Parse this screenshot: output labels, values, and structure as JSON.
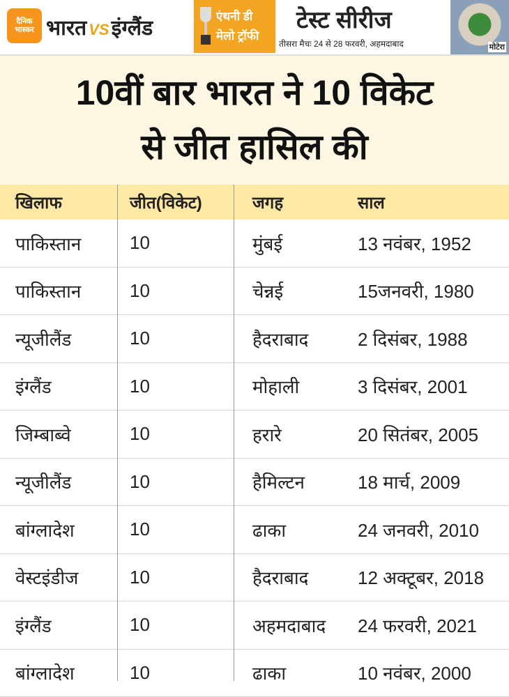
{
  "header": {
    "logo": "दैनिक भास्कर",
    "match": "भारत",
    "vs": "VS",
    "opponent": "इंग्लैंड",
    "trophy_line1": "एंथनी डी",
    "trophy_line2": "मेलो ट्रॉफी",
    "series": "टेस्ट सीरीज",
    "schedule": "तीसरा मैचः 24 से 28 फरवरी, अहमदाबाद",
    "stadium": "मोटेरा"
  },
  "title": {
    "line1": "10वीं बार भारत ने 10 विकेट",
    "line2": "से जीत हासिल की"
  },
  "table": {
    "columns": [
      "खिलाफ",
      "जीत(विकेट)",
      "जगह",
      "साल"
    ],
    "rows": [
      [
        "पाकिस्तान",
        "10",
        "मुंबई",
        "13 नवंबर, 1952"
      ],
      [
        "पाकिस्तान",
        "10",
        "चेन्नई",
        "15जनवरी, 1980"
      ],
      [
        "न्यूजीलैंड",
        "10",
        "हैदराबाद",
        "2 दिसंबर, 1988"
      ],
      [
        "इंग्लैंड",
        "10",
        "मोहाली",
        "3 दिसंबर, 2001"
      ],
      [
        "जिम्बाब्वे",
        "10",
        "हरारे",
        "20 सितंबर, 2005"
      ],
      [
        "न्यूजीलैंड",
        "10",
        "हैमिल्टन",
        "18 मार्च, 2009"
      ],
      [
        "बांग्लादेश",
        "10",
        "ढाका",
        "24 जनवरी, 2010"
      ],
      [
        "वेस्टइंडीज",
        "10",
        "हैदराबाद",
        "12 अक्टूबर, 2018"
      ],
      [
        "इंग्लैंड",
        "10",
        "अहमदाबाद",
        "24 फरवरी, 2021"
      ],
      [
        "बांग्लादेश",
        "10",
        "ढाका",
        "10 नवंबर, 2000"
      ]
    ]
  }
}
